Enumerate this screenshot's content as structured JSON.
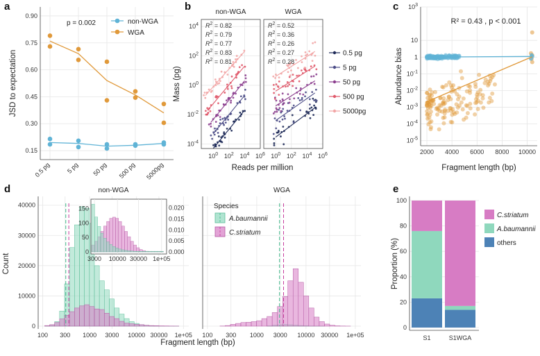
{
  "colors": {
    "nonwga": "#5fb3d6",
    "wga": "#e0993a",
    "pg05": "#1e2a58",
    "pg5": "#4a4b86",
    "pg50": "#8c3f8f",
    "pg500": "#e05a6c",
    "pg5000": "#f2a6a6",
    "teal": "#8fd8bd",
    "pink": "#d77cc4",
    "blue": "#4d82b6"
  },
  "panels": {
    "a": {
      "letter": "a"
    },
    "b": {
      "letter": "b"
    },
    "c": {
      "letter": "c"
    },
    "d": {
      "letter": "d"
    },
    "e": {
      "letter": "e"
    }
  },
  "chart_data": [
    {
      "id": "a",
      "type": "line",
      "title": "",
      "annotation": "p = 0.002",
      "xlabel": "",
      "ylabel": "JSD to expectation",
      "categories": [
        "0.5 pg",
        "5  pg",
        "50  pg",
        "500  pg",
        "5000pg"
      ],
      "ylim": [
        0.1,
        0.95
      ],
      "yticks": [
        "0.15",
        "0.30",
        "0.45",
        "0.60",
        "0.75",
        "0.90"
      ],
      "legend_position": "top-right",
      "series": [
        {
          "name": "non-WGA",
          "line": [
            0.195,
            0.19,
            0.175,
            0.18,
            0.19
          ],
          "points": [
            [
              0,
              0.215
            ],
            [
              0,
              0.185
            ],
            [
              1,
              0.205
            ],
            [
              1,
              0.17
            ],
            [
              2,
              0.185
            ],
            [
              2,
              0.162
            ],
            [
              3,
              0.178
            ],
            [
              3,
              0.185
            ],
            [
              4,
              0.195
            ],
            [
              4,
              0.185
            ]
          ]
        },
        {
          "name": "WGA",
          "line": [
            0.76,
            0.69,
            0.54,
            0.46,
            0.36
          ],
          "points": [
            [
              0,
              0.79
            ],
            [
              0,
              0.73
            ],
            [
              1,
              0.715
            ],
            [
              1,
              0.655
            ],
            [
              2,
              0.645
            ],
            [
              2,
              0.43
            ],
            [
              3,
              0.48
            ],
            [
              3,
              0.445
            ],
            [
              4,
              0.41
            ],
            [
              4,
              0.305
            ]
          ]
        }
      ]
    },
    {
      "id": "b",
      "type": "scatter",
      "xlabel": "Reads per million",
      "ylabel": "Mass (pg)",
      "xscale": "log",
      "yscale": "log",
      "xlim": [
        0.03,
        1000000
      ],
      "ylim": [
        5e-05,
        30000
      ],
      "xticks": [
        "10",
        "10",
        "10",
        "10"
      ],
      "xtick_exponents": [
        "0",
        "2",
        "4",
        "6"
      ],
      "yticks": [
        "10",
        "10",
        "10",
        "10",
        "10"
      ],
      "ytick_exponents": [
        "-4",
        "-2",
        "0",
        "2",
        "4"
      ],
      "facets": [
        "non-WGA",
        "WGA"
      ],
      "legend": [
        "0.5 pg",
        "5   pg",
        "50  pg",
        "500 pg",
        "5000pg"
      ],
      "r2_prefix": "R",
      "r2_exponent": "2",
      "r2": {
        "non-WGA": [
          "= 0.82",
          "= 0.79",
          "= 0.77",
          "= 0.83",
          "= 0.81"
        ],
        "WGA": [
          "= 0.52",
          "= 0.36",
          "= 0.26",
          "= 0.27",
          "= 0.28"
        ]
      },
      "fits": {
        "non-WGA": [
          {
            "x0": 1,
            "y0": 5e-05,
            "x1": 10000,
            "y1": 0.02
          },
          {
            "x0": 1,
            "y0": 0.0005,
            "x1": 10000,
            "y1": 0.2
          },
          {
            "x0": 0.5,
            "y0": 0.003,
            "x1": 10000,
            "y1": 2
          },
          {
            "x0": 0.2,
            "y0": 0.02,
            "x1": 10000,
            "y1": 20
          },
          {
            "x0": 0.1,
            "y0": 0.2,
            "x1": 10000,
            "y1": 200
          }
        ],
        "WGA": [
          {
            "x0": 1,
            "y0": 0.0003,
            "x1": 100000,
            "y1": 0.03
          },
          {
            "x0": 1,
            "y0": 0.004,
            "x1": 100000,
            "y1": 0.3
          },
          {
            "x0": 1,
            "y0": 0.04,
            "x1": 100000,
            "y1": 2
          },
          {
            "x0": 1,
            "y0": 0.4,
            "x1": 100000,
            "y1": 20
          },
          {
            "x0": 1,
            "y0": 4,
            "x1": 100000,
            "y1": 200
          }
        ]
      },
      "points_per_series": 32
    },
    {
      "id": "c",
      "type": "scatter",
      "xlabel": "Fragment length (bp)",
      "ylabel": "Abundance bias",
      "annotation": "R² = 0.43 , p < 0.001",
      "yscale": "log",
      "xlim": [
        1500,
        10800
      ],
      "ylim": [
        5e-06,
        1000
      ],
      "xticks": [
        "2000",
        "4000",
        "6000",
        "8000",
        "10000"
      ],
      "yticks": [
        "10",
        "10",
        "10",
        "10",
        "10",
        "10",
        "10",
        "10",
        "10"
      ],
      "ytick_exponents": [
        "3",
        "1",
        "0",
        "-1",
        "-2",
        "-3",
        "-4",
        "-5"
      ],
      "series": [
        {
          "name": "non-WGA",
          "fit": [
            [
              1900,
              1.0
            ],
            [
              10400,
              1.1
            ]
          ]
        },
        {
          "name": "WGA",
          "fit": [
            [
              1900,
              0.002
            ],
            [
              10400,
              1.05
            ]
          ]
        }
      ]
    },
    {
      "id": "d",
      "type": "bar",
      "xlabel": "Fragment length (bp)",
      "ylabel": "Count",
      "facets": [
        "non-WGA",
        "WGA"
      ],
      "xticks": [
        "100",
        "300",
        "1000",
        "3000",
        "10000",
        "30000",
        "1e+05"
      ],
      "yticks": [
        "0",
        "10000",
        "20000",
        "30000",
        "40000"
      ],
      "ylim": [
        0,
        42000
      ],
      "legend_title": "Species",
      "legend": [
        "A.baumannii",
        "C.striatum"
      ],
      "inset": {
        "xticks": [
          "3000",
          "10000",
          "30000",
          "1e+05"
        ],
        "yticks_left": [
          "0",
          "50",
          "100",
          "150"
        ],
        "yticks_right": [
          "0.000",
          "0.005",
          "0.010",
          "0.015",
          "0.020"
        ]
      },
      "series": [
        {
          "name": "A.baumannii (non-WGA)",
          "values": [
            60,
            250,
            1500,
            5000,
            14000,
            26000,
            33500,
            39500,
            39000,
            34000,
            20000,
            15000,
            12000,
            9000,
            6000,
            4000,
            2500,
            1500,
            900,
            500,
            300,
            150,
            100,
            60,
            40,
            20,
            10
          ]
        },
        {
          "name": "C.striatum (non-WGA)",
          "values": [
            200,
            500,
            1200,
            2400,
            3600,
            4800,
            6000,
            6700,
            7100,
            6500,
            5700,
            5500,
            4300,
            3200,
            2500,
            1600,
            1000,
            800,
            600,
            500,
            300,
            200,
            150,
            100,
            80,
            50,
            30
          ]
        },
        {
          "name": "A.baumannii (WGA)",
          "values": [
            0,
            0,
            0,
            0,
            0,
            0,
            0,
            0,
            0,
            0,
            0,
            100,
            300,
            450,
            500,
            450,
            300,
            200,
            120,
            60,
            20,
            10,
            0,
            0,
            0,
            0,
            0
          ]
        },
        {
          "name": "C.striatum (WGA)",
          "values": [
            0,
            0,
            50,
            200,
            600,
            900,
            1200,
            1300,
            1500,
            1800,
            2500,
            3200,
            4500,
            6500,
            9800,
            15000,
            19000,
            14500,
            10000,
            6000,
            3000,
            1500,
            700,
            300,
            100,
            50,
            20
          ]
        }
      ]
    },
    {
      "id": "e",
      "type": "bar",
      "stacked": true,
      "xlabel": "",
      "ylabel": "Proportion (%)",
      "categories": [
        "S1",
        "S1WGA"
      ],
      "yticks": [
        "0",
        "20",
        "40",
        "60",
        "80",
        "100"
      ],
      "ylim": [
        0,
        100
      ],
      "legend": [
        "C.striatum",
        "A.baumannii",
        "others"
      ],
      "series": [
        {
          "name": "others",
          "values": [
            23,
            14
          ]
        },
        {
          "name": "A.baumannii",
          "values": [
            53,
            3
          ]
        },
        {
          "name": "C.striatum",
          "values": [
            24,
            83
          ]
        }
      ]
    }
  ]
}
